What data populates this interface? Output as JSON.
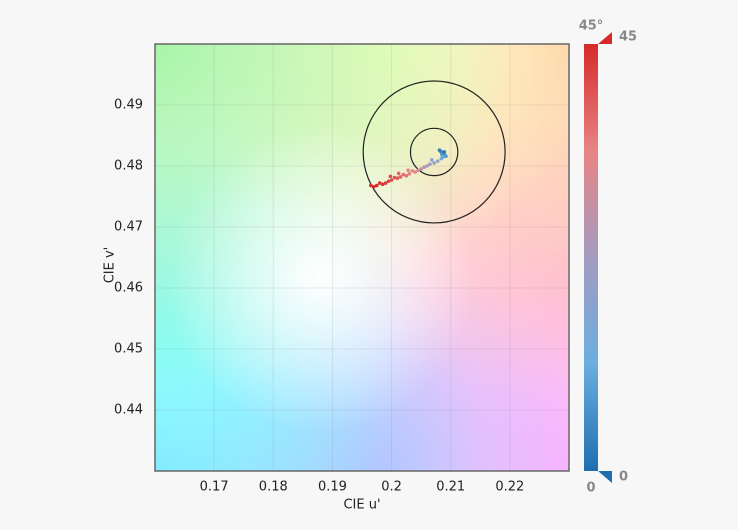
{
  "chart_data": {
    "type": "scatter",
    "xlabel": "CIE u'",
    "ylabel": "CIE v'",
    "xlim": [
      0.16,
      0.23
    ],
    "ylim": [
      0.43,
      0.5
    ],
    "xticks": [
      0.17,
      0.18,
      0.19,
      0.2,
      0.21,
      0.22
    ],
    "yticks": [
      0.44,
      0.45,
      0.46,
      0.47,
      0.48,
      0.49
    ],
    "grid": true,
    "circles": [
      {
        "cx": 0.2072,
        "cy": 0.4823,
        "r": 0.004
      },
      {
        "cx": 0.2072,
        "cy": 0.4823,
        "r": 0.012
      }
    ],
    "x": [
      0.2083,
      0.2086,
      0.2088,
      0.209,
      0.2081,
      0.2092,
      0.2085,
      0.2089,
      0.2087,
      0.2084,
      0.2078,
      0.2072,
      0.2065,
      0.206,
      0.2055,
      0.2068,
      0.205,
      0.2045,
      0.204,
      0.2035,
      0.203,
      0.2025,
      0.202,
      0.2015,
      0.201,
      0.2005,
      0.2,
      0.1995,
      0.199,
      0.1985,
      0.198,
      0.1975,
      0.197,
      0.1965,
      0.2012,
      0.2028,
      0.1998
    ],
    "y": [
      0.4824,
      0.4822,
      0.482,
      0.4818,
      0.4826,
      0.4816,
      0.4819,
      0.4823,
      0.4815,
      0.4812,
      0.4808,
      0.4805,
      0.4803,
      0.48,
      0.4798,
      0.481,
      0.4795,
      0.4793,
      0.479,
      0.4792,
      0.4787,
      0.4784,
      0.4786,
      0.4782,
      0.478,
      0.4781,
      0.4777,
      0.4775,
      0.4772,
      0.477,
      0.4772,
      0.4768,
      0.4766,
      0.4768,
      0.4788,
      0.4793,
      0.4783
    ],
    "c": [
      2,
      4,
      5,
      6,
      3,
      8,
      7,
      1,
      10,
      12,
      18,
      20,
      22,
      24,
      26,
      19,
      28,
      30,
      32,
      33,
      35,
      36,
      37,
      38,
      39,
      40,
      41,
      42,
      43,
      44,
      44,
      45,
      45,
      45,
      38,
      34,
      41
    ],
    "colorscale": [
      "#1f6fb0",
      "#6aaee0",
      "#a39bc0",
      "#e88484",
      "#d62a2a"
    ],
    "clim": [
      0,
      45
    ],
    "cticks": [
      0,
      {
        "value": 45,
        "label": "45°"
      }
    ],
    "handles": [
      45,
      0
    ]
  }
}
